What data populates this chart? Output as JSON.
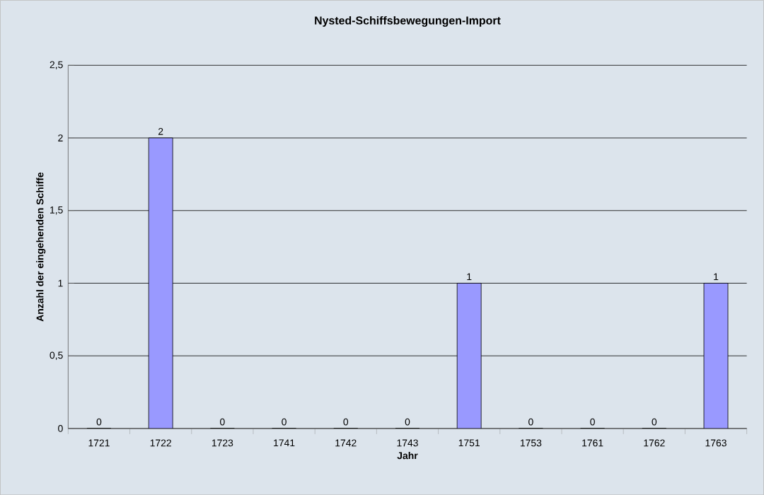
{
  "chart_data": {
    "type": "bar",
    "title": "Nysted-Schiffsbewegungen-Import",
    "xlabel": "Jahr",
    "ylabel": "Anzahl der eingehenden Schiffe",
    "categories": [
      "1721",
      "1722",
      "1723",
      "1741",
      "1742",
      "1743",
      "1751",
      "1753",
      "1761",
      "1762",
      "1763"
    ],
    "values": [
      0,
      2,
      0,
      0,
      0,
      0,
      1,
      0,
      0,
      0,
      1
    ],
    "color": "#9999ff",
    "ylim": [
      0,
      2.5
    ],
    "yticks": [
      {
        "value": 0,
        "label": "0"
      },
      {
        "value": 0.5,
        "label": "0,5"
      },
      {
        "value": 1,
        "label": "1"
      },
      {
        "value": 1.5,
        "label": "1,5"
      },
      {
        "value": 2,
        "label": "2"
      },
      {
        "value": 2.5,
        "label": "2,5"
      }
    ],
    "grid": "y",
    "data_labels": true
  }
}
